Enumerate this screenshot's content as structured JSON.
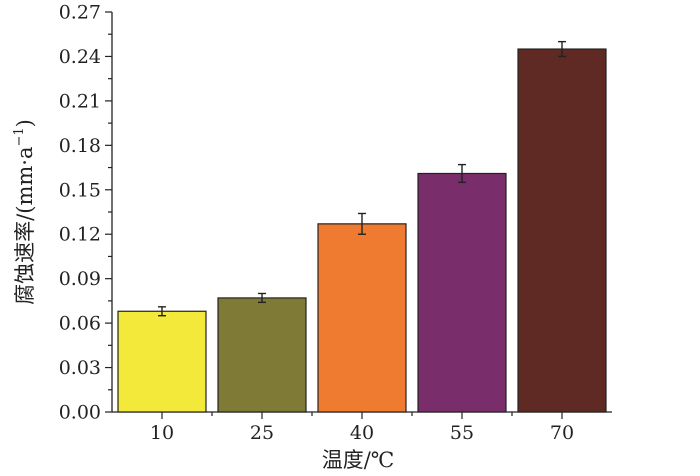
{
  "chart_data": {
    "type": "bar",
    "categories": [
      "10",
      "25",
      "40",
      "55",
      "70"
    ],
    "values": [
      0.068,
      0.077,
      0.127,
      0.161,
      0.245
    ],
    "errors": [
      0.003,
      0.003,
      0.007,
      0.006,
      0.005
    ],
    "colors": [
      "#f2e93a",
      "#7f7b37",
      "#ef7b30",
      "#7a2d6b",
      "#602a24"
    ],
    "xlabel": "温度/℃",
    "ylabel_main": "腐蚀速率/(mm·a",
    "ylabel_sup": "−1",
    "ylabel_close": ")",
    "ylim": [
      0,
      0.27
    ],
    "yticks": [
      "0.00",
      "0.03",
      "0.06",
      "0.09",
      "0.12",
      "0.15",
      "0.18",
      "0.21",
      "0.24",
      "0.27"
    ],
    "grid": false,
    "legend": "none"
  }
}
